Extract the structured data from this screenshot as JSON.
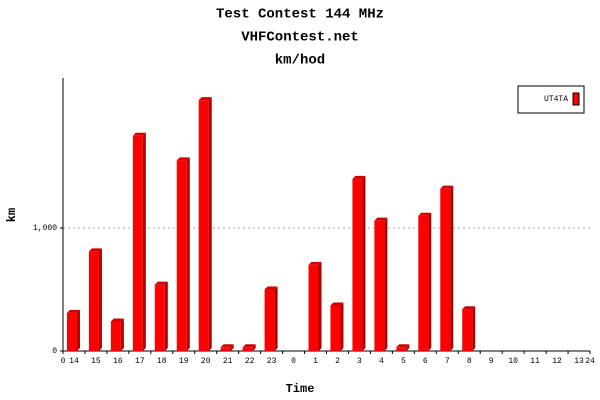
{
  "chart_data": {
    "type": "bar3d",
    "title": "Test Contest 144 MHz",
    "subtitle": "VHFContest.net",
    "unit_title": "km/hod",
    "x_label": "Time",
    "y_label": "km",
    "categories": [
      "14",
      "15",
      "16",
      "17",
      "18",
      "19",
      "20",
      "21",
      "22",
      "23",
      "0",
      "1",
      "2",
      "3",
      "4",
      "5",
      "6",
      "7",
      "8",
      "9",
      "10",
      "11",
      "12",
      "13"
    ],
    "xlim": [
      0,
      24
    ],
    "series": [
      {
        "name": "UT4TA",
        "color": "#ff0000",
        "values": [
          310,
          810,
          240,
          1750,
          540,
          1550,
          2040,
          30,
          30,
          500,
          0,
          700,
          370,
          1400,
          1060,
          30,
          1100,
          1320,
          340,
          0,
          0,
          0,
          0,
          0
        ]
      }
    ],
    "ylim": [
      0,
      2220
    ],
    "yticks": [
      0,
      {
        "value": 1000,
        "label": "1,000"
      }
    ],
    "grid": true,
    "legend": "top-right"
  }
}
